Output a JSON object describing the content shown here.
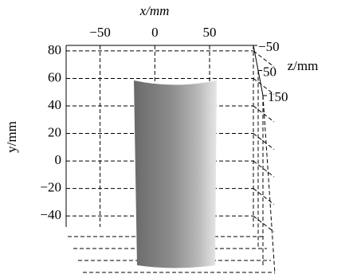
{
  "chart_data": {
    "type": "surface3d",
    "x_label": "x/mm",
    "y_label": "y/mm",
    "z_label": "z/mm",
    "xlim": [
      -81,
      90
    ],
    "xticks": [
      {
        "value": -50,
        "label": "−50"
      },
      0,
      50
    ],
    "ylim": [
      -48,
      84
    ],
    "yticks": [
      80,
      60,
      40,
      20,
      0,
      {
        "value": -20,
        "label": "−20"
      },
      {
        "value": -40,
        "label": "−40"
      }
    ],
    "zlim": [
      -50,
      150
    ],
    "zticks": [
      {
        "value": -50,
        "label": "−50"
      },
      50,
      150
    ],
    "grid": true
  }
}
